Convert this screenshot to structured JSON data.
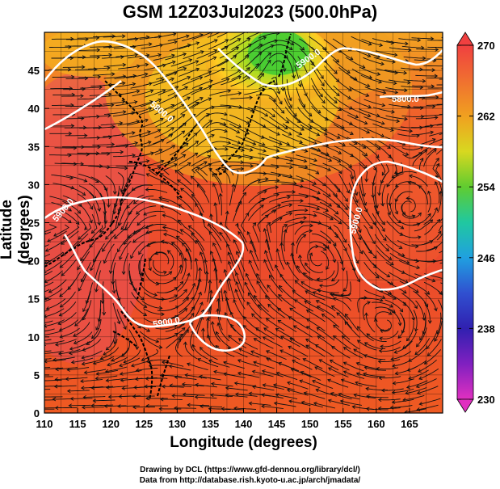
{
  "title": "GSM 12Z03Jul2023 (500.0hPa)",
  "x_axis": {
    "label": "Longitude (degrees)",
    "range": [
      110,
      170
    ],
    "ticks": [
      "110",
      "115",
      "120",
      "125",
      "130",
      "135",
      "140",
      "145",
      "150",
      "155",
      "160",
      "165"
    ]
  },
  "y_axis": {
    "label": "Latitude  (degrees)",
    "range": [
      0,
      50
    ],
    "ticks": [
      "0",
      "5",
      "10",
      "15",
      "20",
      "25",
      "30",
      "35",
      "40",
      "45"
    ]
  },
  "colorbar": {
    "range": [
      230,
      270
    ],
    "tick_labels": [
      "270",
      "262",
      "254",
      "246",
      "238",
      "230"
    ],
    "tick_values": [
      270,
      262,
      254,
      246,
      238,
      230
    ]
  },
  "contour_labels": [
    "5800.0",
    "5800.0",
    "5900.0",
    "5900.0",
    "5900.0",
    "5900.0"
  ],
  "credits": {
    "drawing": "Drawing by DCL (https://www.gfd-dennou.org/library/dcl/)",
    "data": "Data from http://database.rish.kyoto-u.ac.jp/arch/jmadata/"
  },
  "colors": {
    "warm": "#e83a2a",
    "hot": "#f04a3a",
    "mid": "#f08a20",
    "cool": "#d4e020",
    "cold": "#4ccc30",
    "contour": "#ffffff"
  }
}
